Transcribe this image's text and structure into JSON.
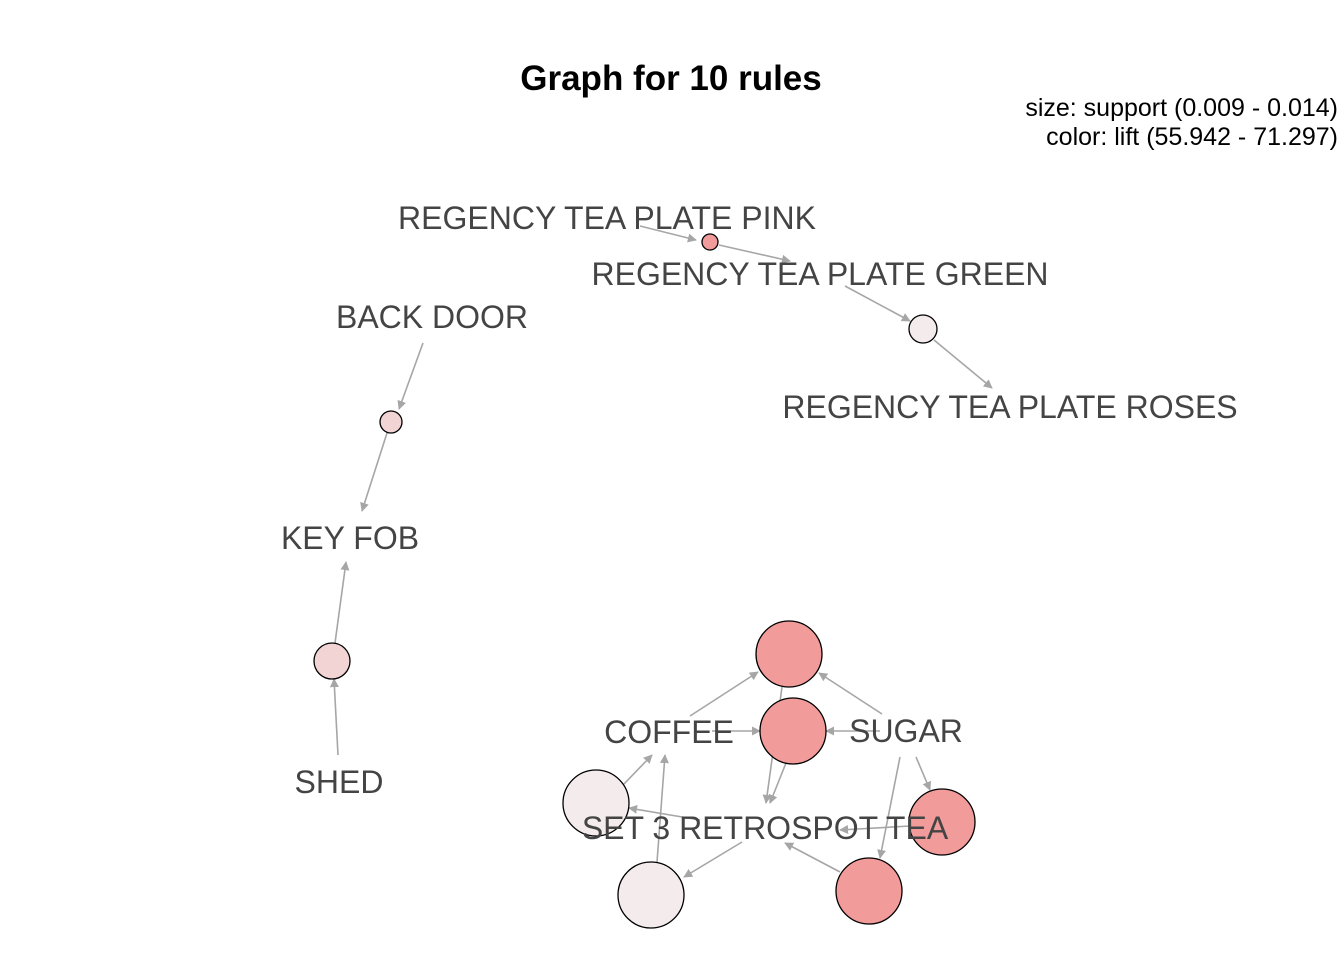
{
  "title": "Graph for 10 rules",
  "legend": {
    "size": "size: support (0.009 - 0.014)",
    "color": "color: lift (55.942 - 71.297)"
  },
  "colors": {
    "edge": "#a6a6a6",
    "label": "#444444",
    "node_stroke": "#000000",
    "lift_high": "#f29b9b",
    "lift_mid": "#f2d4d4",
    "lift_low": "#f4ecec"
  },
  "items": [
    {
      "id": "pink",
      "label": "REGENCY TEA PLATE PINK"
    },
    {
      "id": "green",
      "label": "REGENCY TEA PLATE GREEN"
    },
    {
      "id": "roses",
      "label": "REGENCY TEA PLATE ROSES"
    },
    {
      "id": "backdoor",
      "label": "BACK DOOR"
    },
    {
      "id": "keyfob",
      "label": "KEY FOB"
    },
    {
      "id": "shed",
      "label": "SHED"
    },
    {
      "id": "coffee",
      "label": "COFFEE"
    },
    {
      "id": "sugar",
      "label": "SUGAR"
    },
    {
      "id": "set3",
      "label": "SET 3 RETROSPOT TEA"
    }
  ],
  "rules": [
    {
      "id": "r1",
      "lhs": [
        "pink"
      ],
      "rhs": "green",
      "level": "high"
    },
    {
      "id": "r2",
      "lhs": [
        "green"
      ],
      "rhs": "roses",
      "level": "low"
    },
    {
      "id": "r3",
      "lhs": [
        "backdoor"
      ],
      "rhs": "keyfob",
      "level": "mid"
    },
    {
      "id": "r4",
      "lhs": [
        "shed"
      ],
      "rhs": "keyfob",
      "level": "mid"
    },
    {
      "id": "r5",
      "lhs": [
        "coffee"
      ],
      "rhs": "sugar",
      "level": "high"
    },
    {
      "id": "r6",
      "lhs": [
        "sugar"
      ],
      "rhs": "set3",
      "level": "high"
    },
    {
      "id": "r7",
      "lhs": [
        "coffee"
      ],
      "rhs": "set3",
      "level": "high"
    },
    {
      "id": "r8",
      "lhs": [
        "set3"
      ],
      "rhs": "coffee",
      "level": "low"
    },
    {
      "id": "r9",
      "lhs": [
        "set3"
      ],
      "rhs": "sugar",
      "level": "high"
    },
    {
      "id": "r10",
      "lhs": [
        "sugar"
      ],
      "rhs": "coffee",
      "level": "low"
    }
  ]
}
